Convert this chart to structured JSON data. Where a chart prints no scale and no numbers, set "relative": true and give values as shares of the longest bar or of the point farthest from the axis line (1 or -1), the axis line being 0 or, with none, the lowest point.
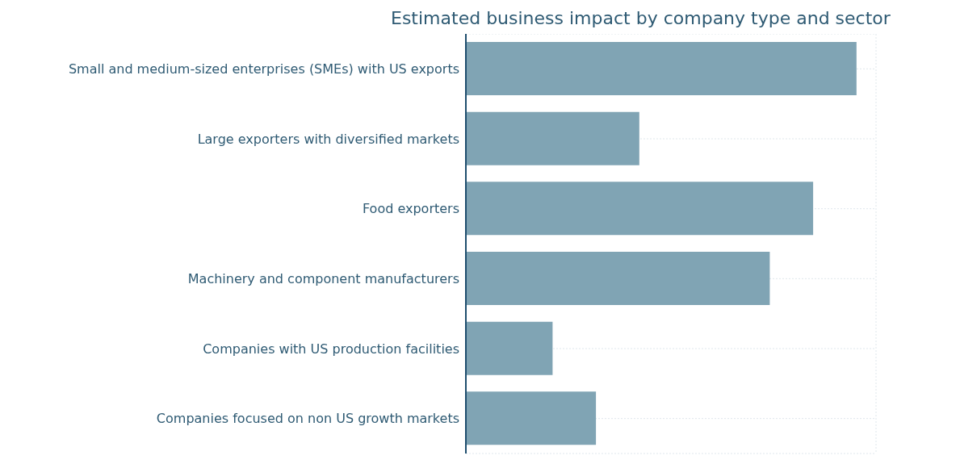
{
  "chart_data": {
    "type": "bar",
    "orientation": "horizontal",
    "relative": true,
    "title": "Estimated business impact by company type and sector",
    "categories": [
      "Small and medium-sized enterprises (SMEs) with US exports",
      "Large exporters with diversified markets",
      "Food exporters",
      "Machinery and component manufacturers",
      "Companies with US production facilities",
      "Companies focused on non US growth markets"
    ],
    "values": [
      1,
      0.444,
      0.889,
      0.778,
      0.222,
      0.333
    ],
    "color": "#80a4b4",
    "grid": true,
    "tick_labels": "y"
  }
}
